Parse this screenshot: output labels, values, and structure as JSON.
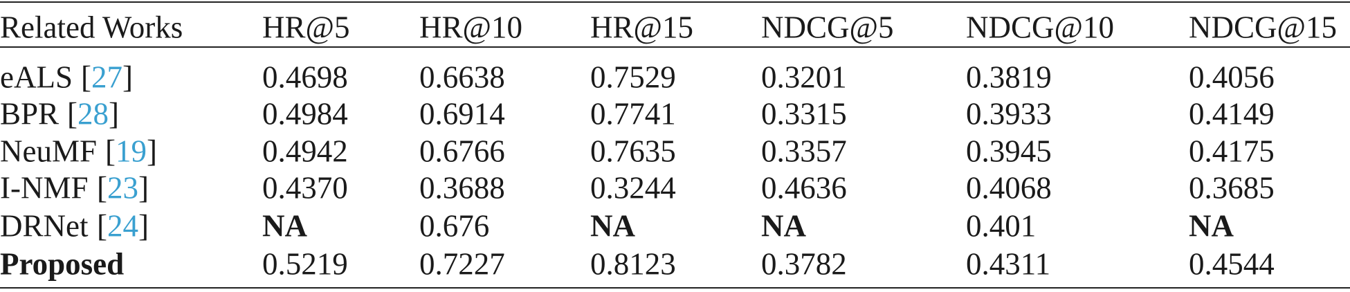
{
  "table": {
    "header": [
      "Related Works",
      "HR@5",
      "HR@10",
      "HR@15",
      "NDCG@5",
      "NDCG@10",
      "NDCG@15"
    ],
    "rows": [
      {
        "name": "eALS",
        "cite": "[27]",
        "values": [
          "0.4698",
          "0.6638",
          "0.7529",
          "0.3201",
          "0.3819",
          "0.4056"
        ]
      },
      {
        "name": "BPR",
        "cite": "[28]",
        "values": [
          "0.4984",
          "0.6914",
          "0.7741",
          "0.3315",
          "0.3933",
          "0.4149"
        ]
      },
      {
        "name": "NeuMF",
        "cite": "[19]",
        "values": [
          "0.4942",
          "0.6766",
          "0.7635",
          "0.3357",
          "0.3945",
          "0.4175"
        ]
      },
      {
        "name": "I-NMF",
        "cite": "[23]",
        "values": [
          "0.4370",
          "0.3688",
          "0.3244",
          "0.4636",
          "0.4068",
          "0.3685"
        ]
      },
      {
        "name": "DRNet",
        "cite": "[24]",
        "values": [
          "NA",
          "0.676",
          "NA",
          "NA",
          "0.401",
          "NA"
        ]
      },
      {
        "name": "Proposed",
        "values": [
          "0.5219",
          "0.7227",
          "0.8123",
          "0.3782",
          "0.4311",
          "0.4544"
        ]
      }
    ]
  }
}
